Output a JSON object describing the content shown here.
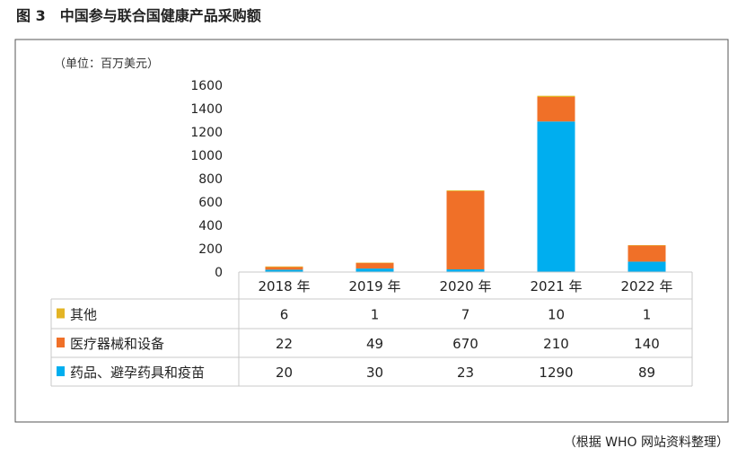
{
  "figure_title": "图 3　中国参与联合国健康产品采购额",
  "source_note": "（根据 WHO 网站资料整理）",
  "chart_data": {
    "type": "bar",
    "stacked": true,
    "title": "",
    "unit_label": "（单位：百万美元）",
    "xlabel": "",
    "ylabel": "",
    "ylim": [
      0,
      1600
    ],
    "yticks": [
      0,
      200,
      400,
      600,
      800,
      1000,
      1200,
      1400,
      1600
    ],
    "grid": false,
    "legend": "table-left",
    "categories": [
      "2018 年",
      "2019 年",
      "2020 年",
      "2021 年",
      "2022 年"
    ],
    "series": [
      {
        "name": "药品、避孕药具和疫苗",
        "color": "#00aeef",
        "values": [
          20,
          30,
          23,
          1290,
          89
        ]
      },
      {
        "name": "医疗器械和设备",
        "color": "#f07028",
        "values": [
          22,
          49,
          670,
          210,
          140
        ]
      },
      {
        "name": "其他",
        "color": "#e3b425",
        "values": [
          6,
          1,
          7,
          10,
          1
        ]
      }
    ],
    "table_row_order": [
      2,
      1,
      0
    ]
  }
}
